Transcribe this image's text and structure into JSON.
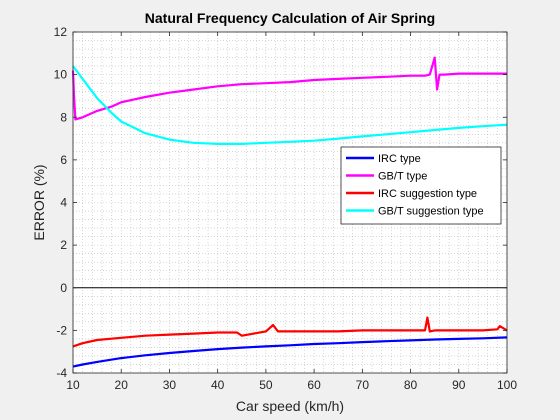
{
  "chart_data": {
    "type": "line",
    "title": "Natural Frequency Calculation of Air Spring",
    "xlabel": "Car speed (km/h)",
    "ylabel": "ERROR (%)",
    "xlim": [
      10,
      100
    ],
    "ylim": [
      -4,
      12
    ],
    "xticks": [
      10,
      20,
      30,
      40,
      50,
      60,
      70,
      80,
      90,
      100
    ],
    "yticks": [
      -4,
      -2,
      0,
      2,
      4,
      6,
      8,
      10,
      12
    ],
    "grid": "minor-dotted",
    "zero_line": true,
    "legend_position": "right",
    "series": [
      {
        "name": "IRC type",
        "color": "#0000ff",
        "x": [
          10,
          12,
          15,
          20,
          25,
          30,
          35,
          40,
          45,
          50,
          55,
          60,
          65,
          70,
          75,
          80,
          85,
          90,
          95,
          100
        ],
        "y": [
          -3.7,
          -3.6,
          -3.48,
          -3.3,
          -3.17,
          -3.06,
          -2.97,
          -2.88,
          -2.81,
          -2.75,
          -2.7,
          -2.64,
          -2.6,
          -2.55,
          -2.51,
          -2.47,
          -2.43,
          -2.4,
          -2.37,
          -2.33
        ]
      },
      {
        "name": "GB/T type",
        "color": "#ff00ff",
        "x": [
          10,
          10.2,
          10.5,
          12,
          15,
          18,
          20,
          25,
          30,
          35,
          40,
          45,
          50,
          55,
          60,
          65,
          70,
          75,
          80,
          83,
          84,
          85,
          85.5,
          86,
          87,
          90,
          95,
          100
        ],
        "y": [
          10.2,
          9.0,
          7.9,
          8.0,
          8.3,
          8.5,
          8.7,
          8.95,
          9.15,
          9.3,
          9.45,
          9.55,
          9.6,
          9.65,
          9.75,
          9.8,
          9.85,
          9.9,
          9.95,
          9.95,
          10.0,
          10.8,
          9.3,
          10.0,
          10.0,
          10.05,
          10.05,
          10.05
        ]
      },
      {
        "name": "IRC suggestion type",
        "color": "#ff0000",
        "x": [
          10,
          12,
          15,
          20,
          25,
          30,
          35,
          40,
          44,
          45,
          50,
          51.5,
          52.5,
          55,
          60,
          65,
          70,
          75,
          80,
          83,
          83.5,
          84,
          85,
          90,
          95,
          98,
          98.5,
          100
        ],
        "y": [
          -2.75,
          -2.6,
          -2.45,
          -2.35,
          -2.25,
          -2.2,
          -2.15,
          -2.1,
          -2.1,
          -2.25,
          -2.05,
          -1.75,
          -2.05,
          -2.05,
          -2.05,
          -2.05,
          -2.0,
          -2.0,
          -2.0,
          -2.0,
          -1.4,
          -2.05,
          -2.0,
          -2.0,
          -2.0,
          -1.95,
          -1.8,
          -2.0
        ]
      },
      {
        "name": "GB/T suggestion type",
        "color": "#00ffff",
        "x": [
          10,
          12,
          15,
          18,
          20,
          25,
          30,
          35,
          40,
          45,
          50,
          55,
          60,
          65,
          70,
          75,
          80,
          85,
          90,
          95,
          100
        ],
        "y": [
          10.4,
          9.8,
          8.9,
          8.2,
          7.8,
          7.25,
          6.95,
          6.8,
          6.75,
          6.75,
          6.8,
          6.85,
          6.9,
          7.0,
          7.1,
          7.2,
          7.3,
          7.4,
          7.5,
          7.58,
          7.65
        ]
      }
    ]
  }
}
